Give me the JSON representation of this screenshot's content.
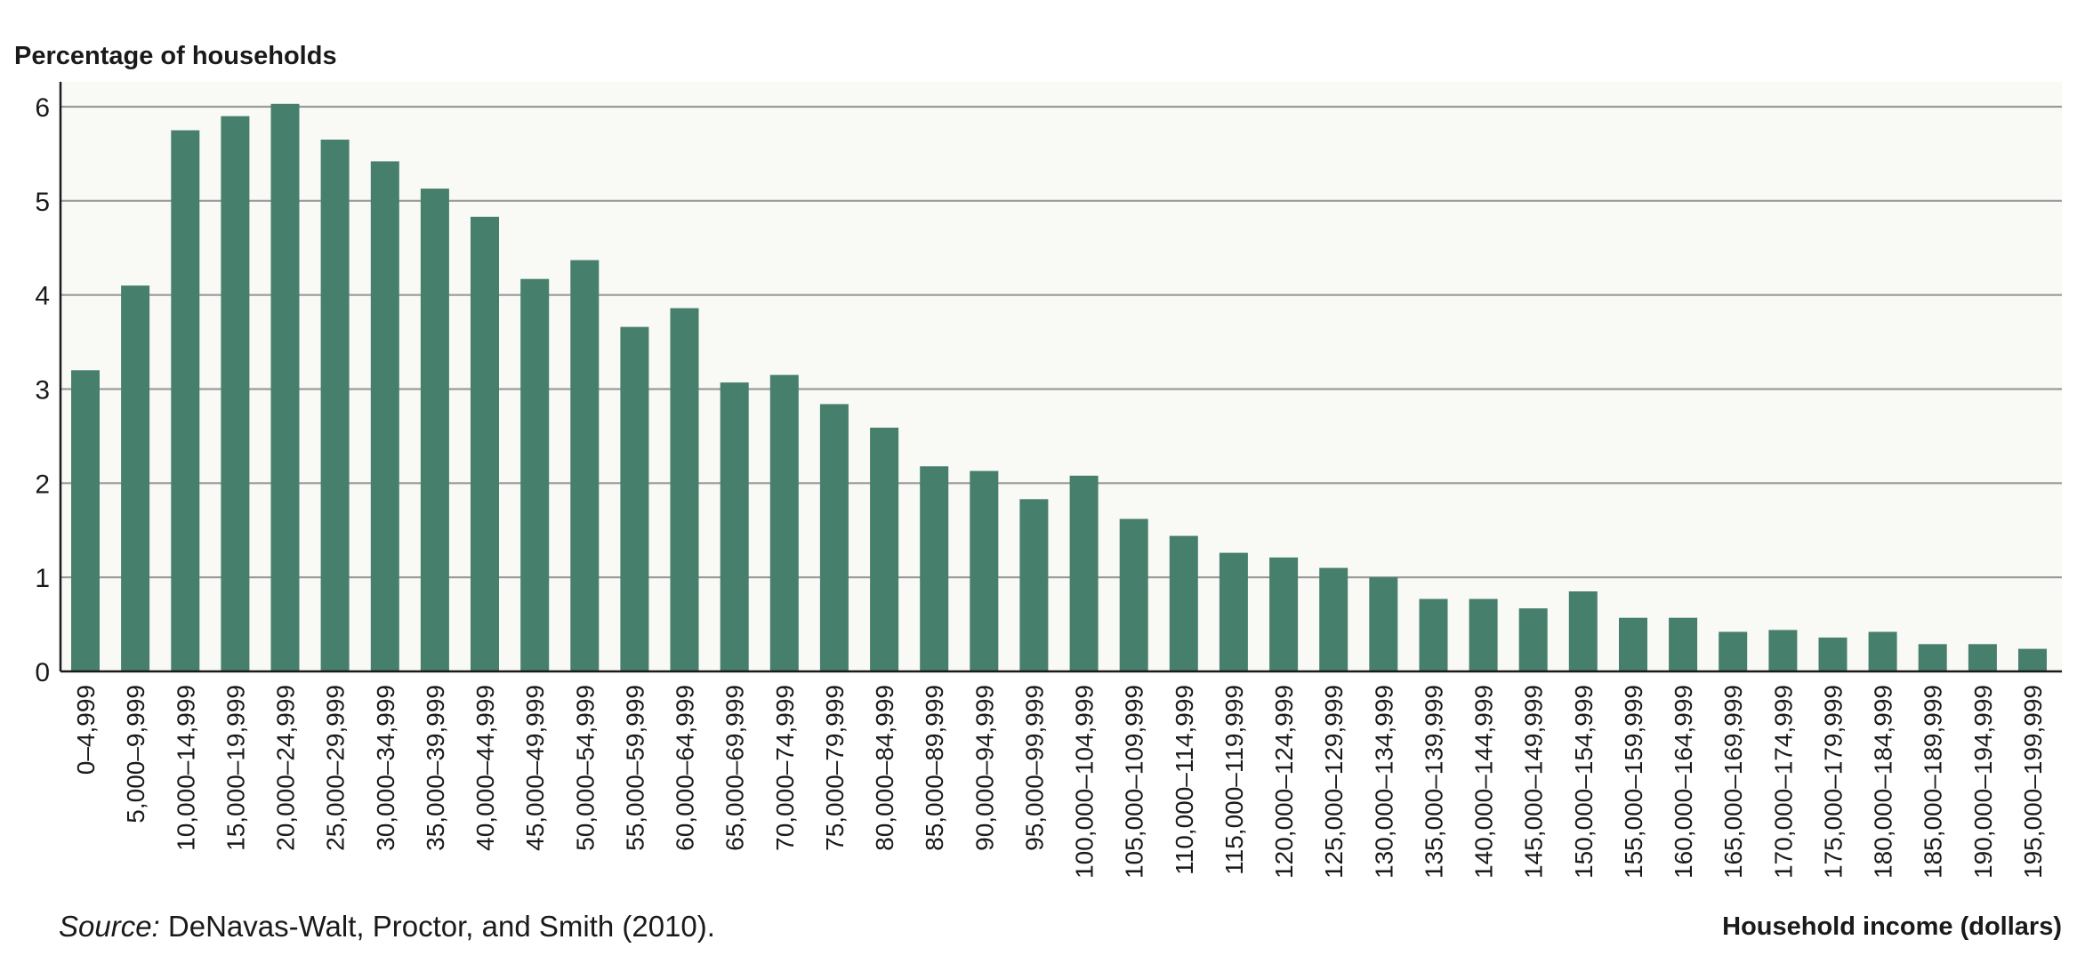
{
  "chart_data": {
    "type": "bar",
    "title": "",
    "ylabel": "Percentage of households",
    "xlabel": "Household income (dollars)",
    "ylim": [
      0,
      6.3
    ],
    "yticks": [
      "0",
      "1",
      "2",
      "3",
      "4",
      "5",
      "6"
    ],
    "grid": true,
    "categories": [
      "0–4,999",
      "5,000–9,999",
      "10,000–14,999",
      "15,000–19,999",
      "20,000–24,999",
      "25,000–29,999",
      "30,000–34,999",
      "35,000–39,999",
      "40,000–44,999",
      "45,000–49,999",
      "50,000–54,999",
      "55,000–59,999",
      "60,000–64,999",
      "65,000–69,999",
      "70,000–74,999",
      "75,000–79,999",
      "80,000–84,999",
      "85,000–89,999",
      "90,000–94,999",
      "95,000–99,999",
      "100,000–104,999",
      "105,000–109,999",
      "110,000–114,999",
      "115,000–119,999",
      "120,000–124,999",
      "125,000–129,999",
      "130,000–134,999",
      "135,000–139,999",
      "140,000–144,999",
      "145,000–149,999",
      "150,000–154,999",
      "155,000–159,999",
      "160,000–164,999",
      "165,000–169,999",
      "170,000–174,999",
      "175,000–179,999",
      "180,000–184,999",
      "185,000–189,999",
      "190,000–194,999",
      "195,000–199,999"
    ],
    "values": [
      3.2,
      4.1,
      5.75,
      5.9,
      6.03,
      5.65,
      5.42,
      5.13,
      4.83,
      4.17,
      4.37,
      3.66,
      3.86,
      3.07,
      3.15,
      2.84,
      2.59,
      2.18,
      2.13,
      1.83,
      2.08,
      1.62,
      1.44,
      1.26,
      1.21,
      1.1,
      1.0,
      0.77,
      0.77,
      0.67,
      0.85,
      0.57,
      0.57,
      0.42,
      0.44,
      0.36,
      0.42,
      0.29,
      0.29,
      0.24
    ],
    "bar_color": "#477f6d",
    "grid_color": "#9a9a9a",
    "plot_background": "#f9f9f6"
  },
  "source_note": {
    "label": "Source:",
    "text": " DeNavas-Walt, Proctor, and Smith (2010)."
  }
}
